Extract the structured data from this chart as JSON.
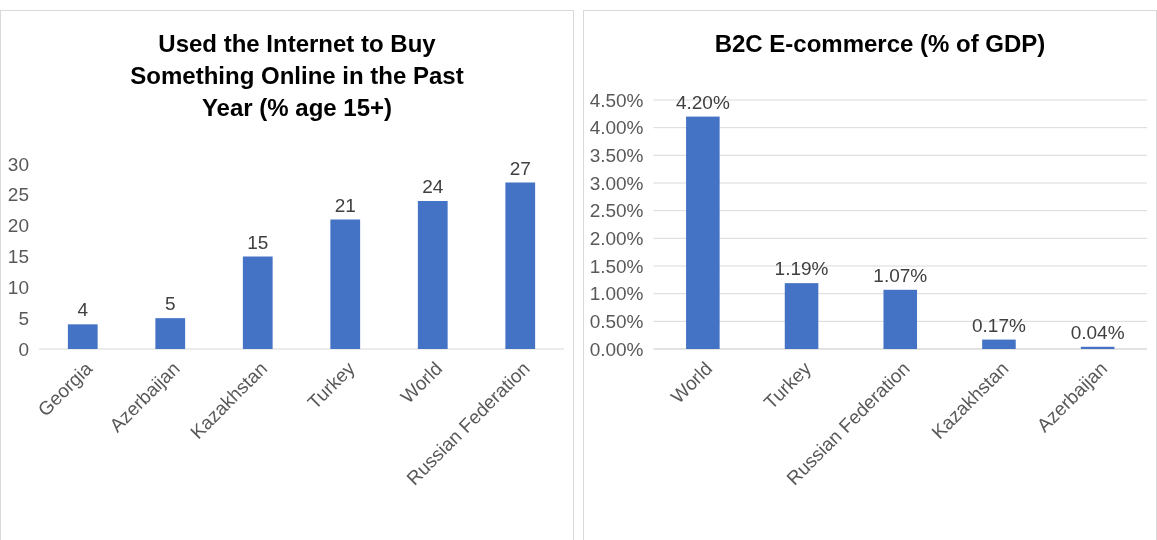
{
  "chart_data": [
    {
      "type": "bar",
      "title": "Used the Internet to Buy Something Online in the Past Year (% age 15+)",
      "categories": [
        "Georgia",
        "Azerbaijan",
        "Kazakhstan",
        "Turkey",
        "World",
        "Russian Federation"
      ],
      "values": [
        4,
        5,
        15,
        21,
        24,
        27
      ],
      "color": "#4472c4",
      "ylim": [
        0,
        30
      ],
      "yticks": [
        0,
        5,
        10,
        15,
        20,
        25,
        30
      ],
      "grid": false,
      "data_labels": true
    },
    {
      "type": "bar",
      "title": "B2C E-commerce (% of GDP)",
      "categories": [
        "World",
        "Turkey",
        "Russian Federation",
        "Kazakhstan",
        "Azerbaijan"
      ],
      "values": [
        4.2,
        1.19,
        1.07,
        0.17,
        0.04
      ],
      "value_labels": [
        "4.20%",
        "1.19%",
        "1.07%",
        "0.17%",
        "0.04%"
      ],
      "color": "#4472c4",
      "ylim": [
        0,
        4.5
      ],
      "yticks": [
        {
          "value": 0,
          "label": "0.00%"
        },
        {
          "value": 0.5,
          "label": "0.50%"
        },
        {
          "value": 1,
          "label": "1.00%"
        },
        {
          "value": 1.5,
          "label": "1.50%"
        },
        {
          "value": 2,
          "label": "2.00%"
        },
        {
          "value": 2.5,
          "label": "2.50%"
        },
        {
          "value": 3,
          "label": "3.00%"
        },
        {
          "value": 3.5,
          "label": "3.50%"
        },
        {
          "value": 4,
          "label": "4.00%"
        },
        {
          "value": 4.5,
          "label": "4.50%"
        }
      ],
      "grid": "y"
    }
  ]
}
